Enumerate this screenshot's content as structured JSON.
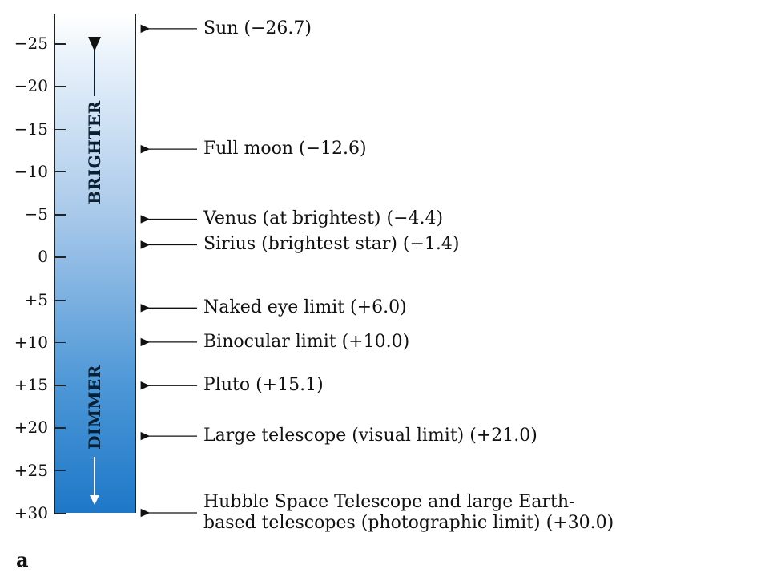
{
  "axis": {
    "min": -25,
    "max": 30,
    "ticks": [
      {
        "value": -25,
        "label": "−25"
      },
      {
        "value": -20,
        "label": "−20"
      },
      {
        "value": -15,
        "label": "−15"
      },
      {
        "value": -10,
        "label": "−10"
      },
      {
        "value": -5,
        "label": "−5"
      },
      {
        "value": 0,
        "label": "0"
      },
      {
        "value": 5,
        "label": "+5"
      },
      {
        "value": 10,
        "label": "+10"
      },
      {
        "value": 15,
        "label": "+15"
      },
      {
        "value": 20,
        "label": "+20"
      },
      {
        "value": 25,
        "label": "+25"
      },
      {
        "value": 30,
        "label": "+30"
      }
    ]
  },
  "bar": {
    "top_text": "BRIGHTER",
    "bottom_text": "DIMMER"
  },
  "entries": [
    {
      "value": -26.7,
      "lines": [
        "Sun (−26.7)"
      ]
    },
    {
      "value": -12.6,
      "lines": [
        "Full moon (−12.6)"
      ]
    },
    {
      "value": -4.4,
      "lines": [
        "Venus (at brightest) (−4.4)"
      ]
    },
    {
      "value": -1.4,
      "lines": [
        "Sirius (brightest star) (−1.4)"
      ]
    },
    {
      "value": 6.0,
      "lines": [
        "Naked eye limit (+6.0)"
      ]
    },
    {
      "value": 10.0,
      "lines": [
        "Binocular limit (+10.0)"
      ]
    },
    {
      "value": 15.1,
      "lines": [
        "Pluto (+15.1)"
      ]
    },
    {
      "value": 21.0,
      "lines": [
        "Large telescope (visual limit) (+21.0)"
      ]
    },
    {
      "value": 30.0,
      "lines": [
        "Hubble Space Telescope and large Earth-",
        "based telescopes (photographic limit) (+30.0)"
      ]
    }
  ],
  "panel_letter": "a"
}
